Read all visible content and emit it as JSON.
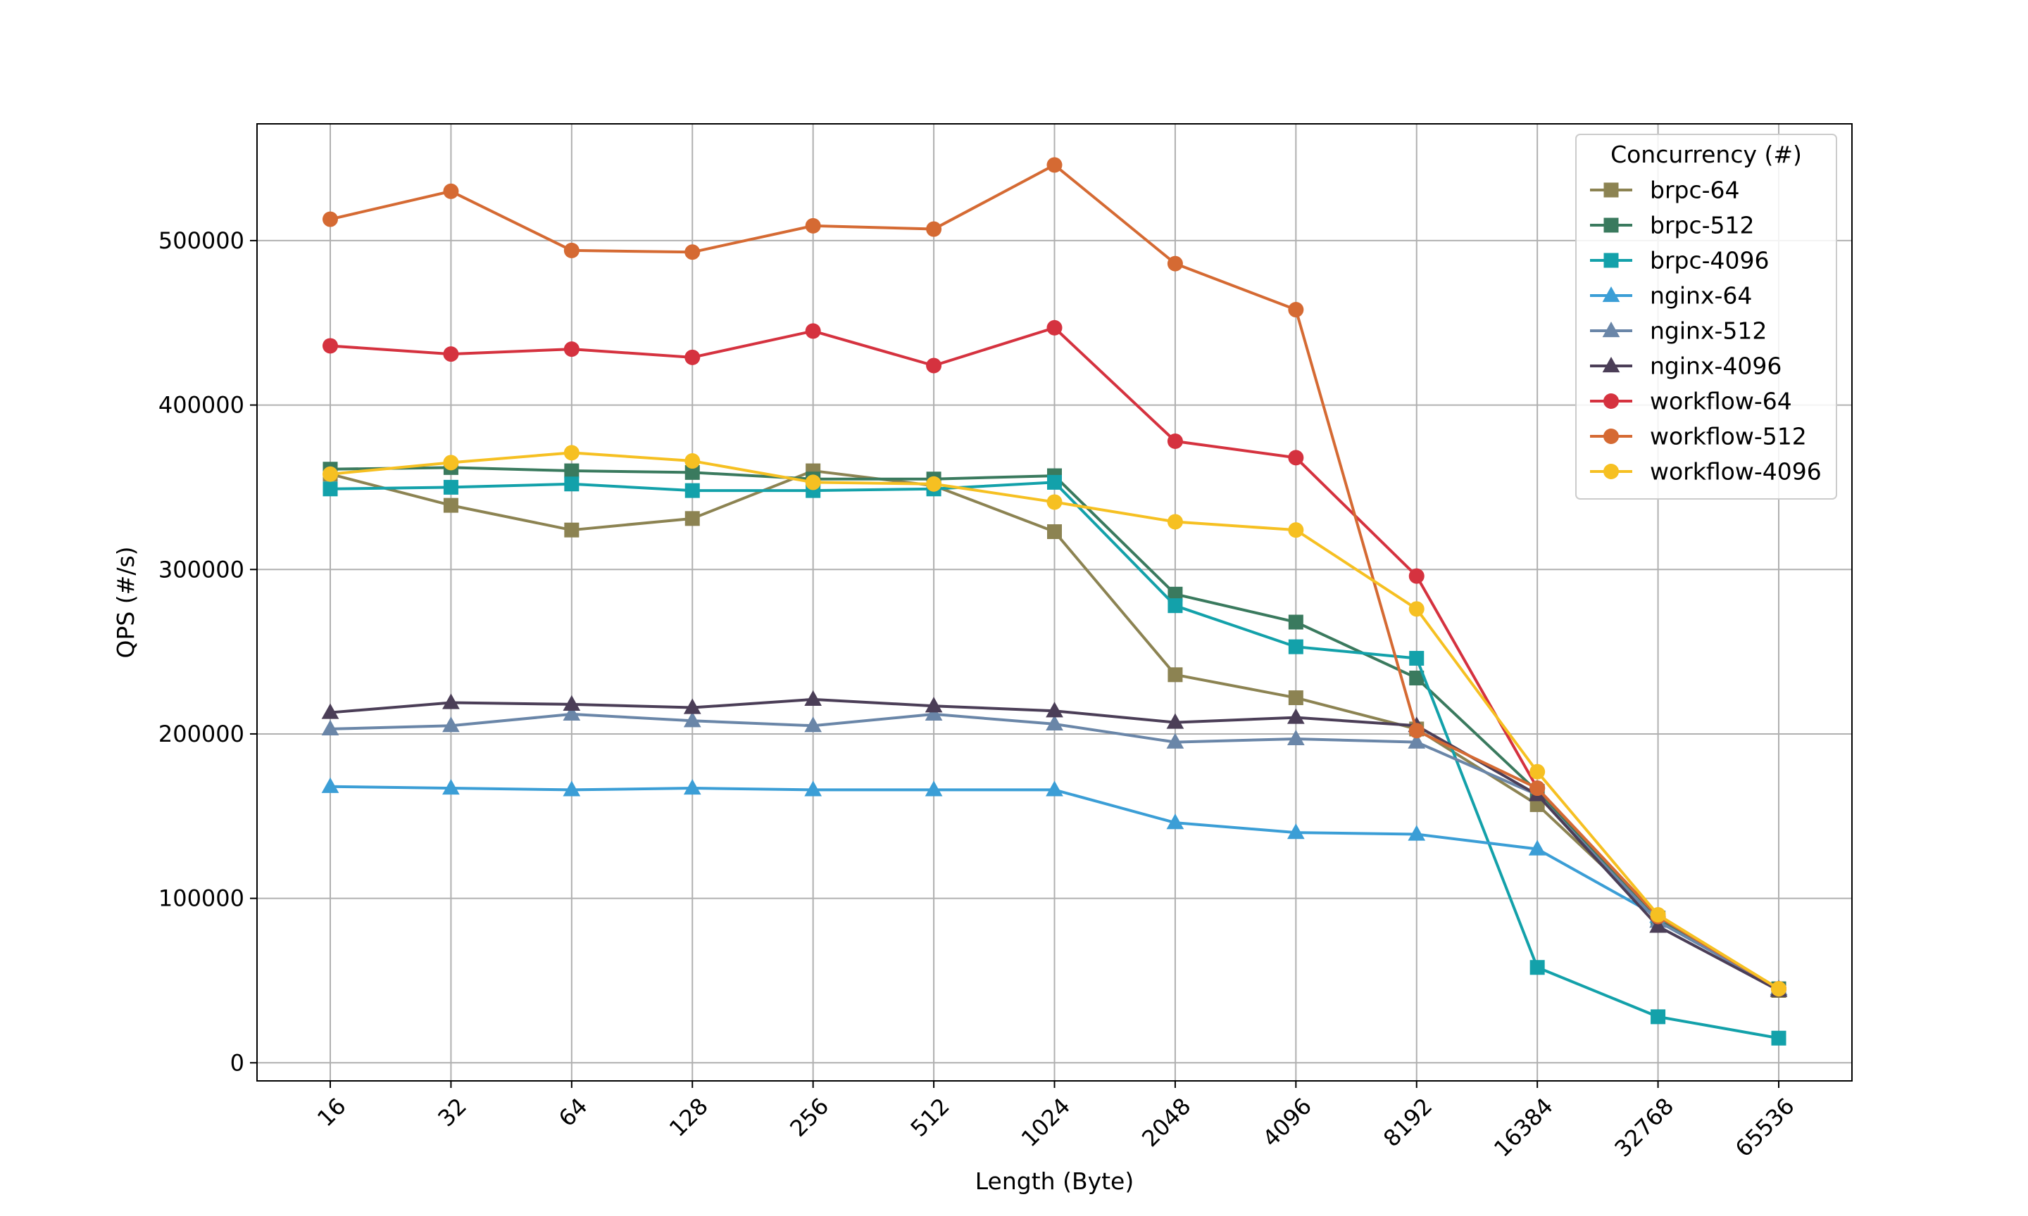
{
  "chart_data": {
    "type": "line",
    "xlabel": "Length (Byte)",
    "ylabel": "QPS (#/s)",
    "categories": [
      "16",
      "32",
      "64",
      "128",
      "256",
      "512",
      "1024",
      "2048",
      "4096",
      "8192",
      "16384",
      "32768",
      "65536"
    ],
    "ylim": [
      -11000,
      571000
    ],
    "yticks": [
      0,
      100000,
      200000,
      300000,
      400000,
      500000
    ],
    "ytick_labels": [
      "0",
      "100000",
      "200000",
      "300000",
      "400000",
      "500000"
    ],
    "grid": true,
    "legend": {
      "title": "Concurrency (#)",
      "position": "top-right"
    },
    "series": [
      {
        "name": "brpc-64",
        "color": "#8c8352",
        "marker": "square",
        "values": [
          358000,
          339000,
          324000,
          331000,
          360000,
          351000,
          323000,
          236000,
          222000,
          203000,
          157000,
          88000,
          44000
        ]
      },
      {
        "name": "brpc-512",
        "color": "#3a7a5e",
        "marker": "square",
        "values": [
          361000,
          362000,
          360000,
          359000,
          355000,
          355000,
          357000,
          285000,
          268000,
          234000,
          165000,
          88000,
          45000
        ]
      },
      {
        "name": "brpc-4096",
        "color": "#13a1aa",
        "marker": "square",
        "values": [
          349000,
          350000,
          352000,
          348000,
          348000,
          349000,
          353000,
          278000,
          253000,
          246000,
          58000,
          28000,
          15000
        ]
      },
      {
        "name": "nginx-64",
        "color": "#3b9ed6",
        "marker": "triangle",
        "values": [
          168000,
          167000,
          166000,
          167000,
          166000,
          166000,
          166000,
          146000,
          140000,
          139000,
          130000,
          89000,
          45000
        ]
      },
      {
        "name": "nginx-512",
        "color": "#6a86a8",
        "marker": "triangle",
        "values": [
          203000,
          205000,
          212000,
          208000,
          205000,
          212000,
          206000,
          195000,
          197000,
          195000,
          163000,
          86000,
          45000
        ]
      },
      {
        "name": "nginx-4096",
        "color": "#4b3e57",
        "marker": "triangle",
        "values": [
          213000,
          219000,
          218000,
          216000,
          221000,
          217000,
          214000,
          207000,
          210000,
          205000,
          163000,
          83000,
          44000
        ]
      },
      {
        "name": "workflow-64",
        "color": "#d5323f",
        "marker": "circle",
        "values": [
          436000,
          431000,
          434000,
          429000,
          445000,
          424000,
          447000,
          378000,
          368000,
          296000,
          167000,
          89000,
          45000
        ]
      },
      {
        "name": "workflow-512",
        "color": "#d56a33",
        "marker": "circle",
        "values": [
          513000,
          530000,
          494000,
          493000,
          509000,
          507000,
          546000,
          486000,
          458000,
          202000,
          167000,
          89000,
          45000
        ]
      },
      {
        "name": "workflow-4096",
        "color": "#f6c022",
        "marker": "circle",
        "values": [
          358000,
          365000,
          371000,
          366000,
          353000,
          352000,
          341000,
          329000,
          324000,
          276000,
          177000,
          90000,
          45000
        ]
      }
    ]
  }
}
